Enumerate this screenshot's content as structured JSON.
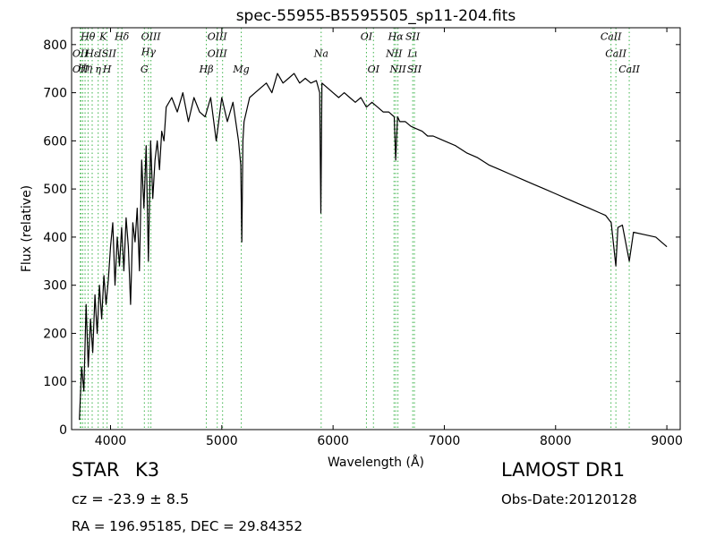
{
  "chart_data": {
    "type": "line",
    "title": "spec-55955-B5595505_sp11-204.fits",
    "xlabel": "Wavelength (Å)",
    "ylabel": "Flux (relative)",
    "xlim": [
      3650,
      9120
    ],
    "ylim": [
      0,
      835
    ],
    "xticks": [
      4000,
      5000,
      6000,
      7000,
      8000,
      9000
    ],
    "yticks": [
      0,
      100,
      200,
      300,
      400,
      500,
      600,
      700,
      800
    ],
    "grid": false,
    "series": [
      {
        "color": "#000000",
        "x": [
          3720,
          3740,
          3760,
          3780,
          3800,
          3820,
          3840,
          3860,
          3880,
          3900,
          3920,
          3940,
          3960,
          3980,
          4000,
          4020,
          4040,
          4060,
          4080,
          4100,
          4120,
          4140,
          4160,
          4180,
          4200,
          4220,
          4240,
          4260,
          4280,
          4300,
          4320,
          4340,
          4360,
          4380,
          4400,
          4420,
          4440,
          4460,
          4480,
          4500,
          4550,
          4600,
          4650,
          4700,
          4750,
          4800,
          4850,
          4900,
          4950,
          5000,
          5050,
          5100,
          5150,
          5170,
          5180,
          5190,
          5200,
          5250,
          5300,
          5350,
          5400,
          5450,
          5500,
          5550,
          5600,
          5650,
          5700,
          5750,
          5800,
          5850,
          5880,
          5890,
          5900,
          5950,
          6000,
          6050,
          6100,
          6150,
          6200,
          6250,
          6300,
          6350,
          6400,
          6450,
          6500,
          6550,
          6563,
          6580,
          6600,
          6650,
          6700,
          6750,
          6800,
          6850,
          6900,
          6950,
          7000,
          7100,
          7200,
          7300,
          7400,
          7500,
          7600,
          7700,
          7800,
          7900,
          8000,
          8100,
          8200,
          8300,
          8400,
          8450,
          8500,
          8542,
          8560,
          8600,
          8662,
          8700,
          8800,
          8900,
          9000
        ],
        "values": [
          20,
          130,
          80,
          260,
          130,
          230,
          160,
          280,
          200,
          300,
          230,
          320,
          260,
          310,
          380,
          430,
          300,
          400,
          340,
          420,
          330,
          440,
          380,
          260,
          430,
          390,
          460,
          330,
          560,
          460,
          590,
          350,
          600,
          480,
          560,
          600,
          540,
          620,
          600,
          670,
          690,
          660,
          700,
          640,
          690,
          660,
          650,
          690,
          600,
          690,
          640,
          680,
          600,
          550,
          390,
          600,
          640,
          690,
          700,
          710,
          720,
          700,
          740,
          720,
          730,
          740,
          720,
          730,
          720,
          725,
          700,
          450,
          720,
          710,
          700,
          690,
          700,
          690,
          680,
          690,
          670,
          680,
          670,
          660,
          660,
          650,
          560,
          650,
          640,
          640,
          630,
          625,
          620,
          610,
          610,
          605,
          600,
          590,
          575,
          565,
          550,
          540,
          530,
          520,
          510,
          500,
          490,
          480,
          470,
          460,
          450,
          445,
          430,
          340,
          420,
          425,
          350,
          410,
          405,
          400,
          380
        ]
      }
    ],
    "line_markers": {
      "color": "#3cb34a",
      "x": [
        3728,
        3734,
        3750,
        3771,
        3798,
        3835,
        3889,
        3933,
        3969,
        4068,
        4102,
        4304,
        4341,
        4363,
        4861,
        4959,
        5007,
        5175,
        5893,
        6300,
        6363,
        6548,
        6563,
        6583,
        6716,
        6731,
        8498,
        8542,
        8662
      ]
    },
    "line_labels": [
      {
        "text": "Hθ",
        "x": 3797,
        "y": 810
      },
      {
        "text": "K",
        "x": 3933,
        "y": 810
      },
      {
        "text": "Hδ",
        "x": 4102,
        "y": 810
      },
      {
        "text": "OIII",
        "x": 4363,
        "y": 810
      },
      {
        "text": "OIII",
        "x": 4959,
        "y": 810
      },
      {
        "text": "OI",
        "x": 6300,
        "y": 810
      },
      {
        "text": "Hα",
        "x": 6563,
        "y": 810
      },
      {
        "text": "SII",
        "x": 6716,
        "y": 810
      },
      {
        "text": "CaII",
        "x": 8498,
        "y": 810
      },
      {
        "text": "OII",
        "x": 3728,
        "y": 775
      },
      {
        "text": "Hε",
        "x": 3835,
        "y": 775
      },
      {
        "text": "ISII",
        "x": 3969,
        "y": 775
      },
      {
        "text": "Hγ",
        "x": 4341,
        "y": 778
      },
      {
        "text": "OIII",
        "x": 4959,
        "y": 775
      },
      {
        "text": "Na",
        "x": 5893,
        "y": 775
      },
      {
        "text": "NII",
        "x": 6548,
        "y": 775
      },
      {
        "text": "Lι",
        "x": 6716,
        "y": 775
      },
      {
        "text": "CaII",
        "x": 8542,
        "y": 775
      },
      {
        "text": "OII",
        "x": 3728,
        "y": 742
      },
      {
        "text": "Hη",
        "x": 3771,
        "y": 745
      },
      {
        "text": "η",
        "x": 3889,
        "y": 742
      },
      {
        "text": "H",
        "x": 3969,
        "y": 742
      },
      {
        "text": "G",
        "x": 4304,
        "y": 742
      },
      {
        "text": "Hβ",
        "x": 4861,
        "y": 742
      },
      {
        "text": "Mg",
        "x": 5175,
        "y": 742
      },
      {
        "text": "OI",
        "x": 6363,
        "y": 742
      },
      {
        "text": "NII",
        "x": 6583,
        "y": 742
      },
      {
        "text": "SII",
        "x": 6731,
        "y": 742
      },
      {
        "text": "CaII",
        "x": 8662,
        "y": 742
      }
    ]
  },
  "info": {
    "object_class": "STAR",
    "subclass": "K3",
    "survey": "LAMOST DR1",
    "redshift": "cz = -23.9 ± 8.5",
    "obs_date": "Obs-Date:20120128",
    "coords": "RA = 196.95185, DEC = 29.84352"
  }
}
